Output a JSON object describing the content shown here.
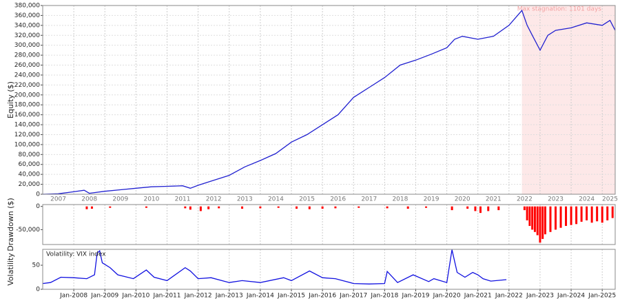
{
  "chart_data": [
    {
      "type": "line",
      "ylabel": "Equity ($)",
      "color": "#2020d0",
      "xlim": [
        "2007-01",
        "2025-06"
      ],
      "ylim": [
        0,
        380000
      ],
      "grid": true,
      "yticks": [
        0,
        {
          "value": 20000,
          "label": "20,000"
        },
        {
          "value": 40000,
          "label": "40,000"
        },
        {
          "value": 60000,
          "label": "60,000"
        },
        {
          "value": 80000,
          "label": "80,000"
        },
        {
          "value": 100000,
          "label": "100,000"
        },
        {
          "value": 120000,
          "label": "120,000"
        },
        {
          "value": 140000,
          "label": "140,000"
        },
        {
          "value": 160000,
          "label": "160,000"
        },
        {
          "value": 180000,
          "label": "180,000"
        },
        {
          "value": 200000,
          "label": "200,000"
        },
        {
          "value": 220000,
          "label": "220,000"
        },
        {
          "value": 240000,
          "label": "240,000"
        },
        {
          "value": 260000,
          "label": "260,000"
        },
        {
          "value": 280000,
          "label": "280,000"
        },
        {
          "value": 300000,
          "label": "300,000"
        },
        {
          "value": 320000,
          "label": "320,000"
        },
        {
          "value": 340000,
          "label": "340,000"
        },
        {
          "value": 360000,
          "label": "360,000"
        },
        {
          "value": 380000,
          "label": "380,000"
        }
      ],
      "xticks": [
        {
          "value": "2007-07",
          "label": "2007"
        },
        {
          "value": "2008-07",
          "label": "2008"
        },
        {
          "value": "2009-07",
          "label": "2009"
        },
        {
          "value": "2010-07",
          "label": "2010"
        },
        {
          "value": "2011-07",
          "label": "2011"
        },
        {
          "value": "2012-07",
          "label": "2012"
        },
        {
          "value": "2013-07",
          "label": "2013"
        },
        {
          "value": "2014-07",
          "label": "2014"
        },
        {
          "value": "2015-07",
          "label": "2015"
        },
        {
          "value": "2016-07",
          "label": "2016"
        },
        {
          "value": "2017-07",
          "label": "2017"
        },
        {
          "value": "2018-07",
          "label": "2018"
        },
        {
          "value": "2019-07",
          "label": "2019"
        },
        {
          "value": "2020-07",
          "label": "2020"
        },
        {
          "value": "2021-07",
          "label": "2021"
        },
        {
          "value": "2022-07",
          "label": "2022"
        },
        {
          "value": "2023-07",
          "label": "2023"
        },
        {
          "value": "2024-07",
          "label": "2024"
        },
        {
          "value": "2025-04",
          "label": "2025"
        }
      ],
      "shade": {
        "x": [
          "2022-06",
          "2025-06"
        ],
        "label": "Max stagnation: 1101 days",
        "color": "#fde8e8"
      },
      "x": [
        "2007-01",
        "2007-07",
        "2008-01",
        "2008-05",
        "2008-07",
        "2009-01",
        "2009-07",
        "2010-01",
        "2010-07",
        "2011-01",
        "2011-07",
        "2011-10",
        "2012-01",
        "2012-07",
        "2013-01",
        "2013-07",
        "2014-01",
        "2014-07",
        "2015-01",
        "2015-07",
        "2016-01",
        "2016-07",
        "2017-01",
        "2017-07",
        "2018-01",
        "2018-07",
        "2019-01",
        "2019-07",
        "2020-01",
        "2020-04",
        "2020-07",
        "2021-01",
        "2021-07",
        "2022-01",
        "2022-06",
        "2022-08",
        "2022-10",
        "2023-01",
        "2023-04",
        "2023-07",
        "2024-01",
        "2024-07",
        "2025-01",
        "2025-04",
        "2025-06"
      ],
      "values": [
        0,
        1000,
        5000,
        8000,
        2000,
        6000,
        9000,
        12000,
        15000,
        16000,
        17000,
        12000,
        18000,
        28000,
        38000,
        55000,
        68000,
        82000,
        105000,
        120000,
        140000,
        160000,
        195000,
        215000,
        235000,
        260000,
        270000,
        282000,
        295000,
        312000,
        318000,
        312000,
        318000,
        340000,
        370000,
        340000,
        320000,
        290000,
        320000,
        330000,
        335000,
        345000,
        340000,
        350000,
        330000
      ]
    },
    {
      "type": "bar",
      "ylabel": "Drawdown ($)",
      "color": "#ff0000",
      "xlim": [
        "2007-01",
        "2025-06"
      ],
      "ylim": [
        -82000,
        4000
      ],
      "yticks": [
        0,
        {
          "value": -50000,
          "label": "-50,000"
        }
      ],
      "x": [
        "2008-06",
        "2008-08",
        "2009-03",
        "2010-05",
        "2011-08",
        "2011-10",
        "2012-02",
        "2012-05",
        "2012-09",
        "2013-06",
        "2014-01",
        "2014-08",
        "2015-03",
        "2015-08",
        "2016-01",
        "2016-06",
        "2017-03",
        "2018-02",
        "2018-10",
        "2019-05",
        "2020-03",
        "2020-09",
        "2020-12",
        "2021-02",
        "2021-05",
        "2021-09",
        "2022-07",
        "2022-08",
        "2022-09",
        "2022-10",
        "2022-11",
        "2022-12",
        "2023-01",
        "2023-02",
        "2023-03",
        "2023-05",
        "2023-07",
        "2023-09",
        "2023-11",
        "2024-01",
        "2024-03",
        "2024-05",
        "2024-07",
        "2024-09",
        "2024-11",
        "2025-01",
        "2025-03",
        "2025-05"
      ],
      "values": [
        -6000,
        -5000,
        -3000,
        -3000,
        -4000,
        -7000,
        -10000,
        -6000,
        -4000,
        -5000,
        -4000,
        -3000,
        -5000,
        -6000,
        -5000,
        -4000,
        -3000,
        -4000,
        -5000,
        -3000,
        -8000,
        -5000,
        -10000,
        -14000,
        -10000,
        -8000,
        -8000,
        -30000,
        -42000,
        -50000,
        -55000,
        -62000,
        -78000,
        -70000,
        -60000,
        -55000,
        -50000,
        -46000,
        -42000,
        -40000,
        -38000,
        -33000,
        -30000,
        -35000,
        -32000,
        -35000,
        -30000,
        -25000
      ]
    },
    {
      "type": "line",
      "ylabel": "Volatility",
      "xlim": [
        "2007-01",
        "2025-06"
      ],
      "ylim": [
        0,
        83
      ],
      "yticks": [
        0,
        50
      ],
      "xticks": [
        {
          "value": "2008-01",
          "label": "Jan-2008"
        },
        {
          "value": "2009-01",
          "label": "Jan-2009"
        },
        {
          "value": "2010-01",
          "label": "Jan-2010"
        },
        {
          "value": "2011-01",
          "label": "Jan-2011"
        },
        {
          "value": "2012-01",
          "label": "Jan-2012"
        },
        {
          "value": "2013-01",
          "label": "Jan-2013"
        },
        {
          "value": "2014-01",
          "label": "Jan-2014"
        },
        {
          "value": "2015-01",
          "label": "Jan-2015"
        },
        {
          "value": "2016-01",
          "label": "Jan-2016"
        },
        {
          "value": "2017-01",
          "label": "Jan-2017"
        },
        {
          "value": "2018-01",
          "label": "Jan-2018"
        },
        {
          "value": "2019-01",
          "label": "Jan-2019"
        },
        {
          "value": "2020-01",
          "label": "Jan-2020"
        },
        {
          "value": "2021-01",
          "label": "Jan-2021"
        },
        {
          "value": "2022-01",
          "label": "Jan-2022"
        },
        {
          "value": "2023-01",
          "label": "Jan-2023"
        },
        {
          "value": "2024-01",
          "label": "Jan-2024"
        },
        {
          "value": "2025-01",
          "label": "Jan-2025"
        }
      ],
      "x": [
        "2007-01",
        "2007-04",
        "2007-08",
        "2008-01",
        "2008-06",
        "2008-09",
        "2008-10",
        "2008-11",
        "2008-12",
        "2009-03",
        "2009-06",
        "2009-12",
        "2010-05",
        "2010-08",
        "2011-01",
        "2011-08",
        "2011-10",
        "2012-01",
        "2012-06",
        "2013-01",
        "2013-06",
        "2014-01",
        "2014-10",
        "2015-01",
        "2015-08",
        "2016-01",
        "2016-06",
        "2017-01",
        "2017-07",
        "2018-01",
        "2018-02",
        "2018-06",
        "2018-12",
        "2019-06",
        "2019-08",
        "2020-01",
        "2020-03",
        "2020-05",
        "2020-08",
        "2020-11",
        "2021-01",
        "2021-03",
        "2021-06",
        "2021-12"
      ],
      "series": [
        {
          "name": "Volatility: VIX index",
          "color": "#1010e0",
          "values": [
            12,
            14,
            25,
            24,
            22,
            30,
            75,
            80,
            55,
            45,
            30,
            22,
            40,
            25,
            18,
            45,
            38,
            22,
            24,
            14,
            18,
            14,
            24,
            18,
            38,
            24,
            22,
            12,
            11,
            12,
            37,
            14,
            30,
            16,
            22,
            14,
            82,
            35,
            25,
            35,
            30,
            22,
            17,
            20
          ]
        }
      ]
    }
  ]
}
